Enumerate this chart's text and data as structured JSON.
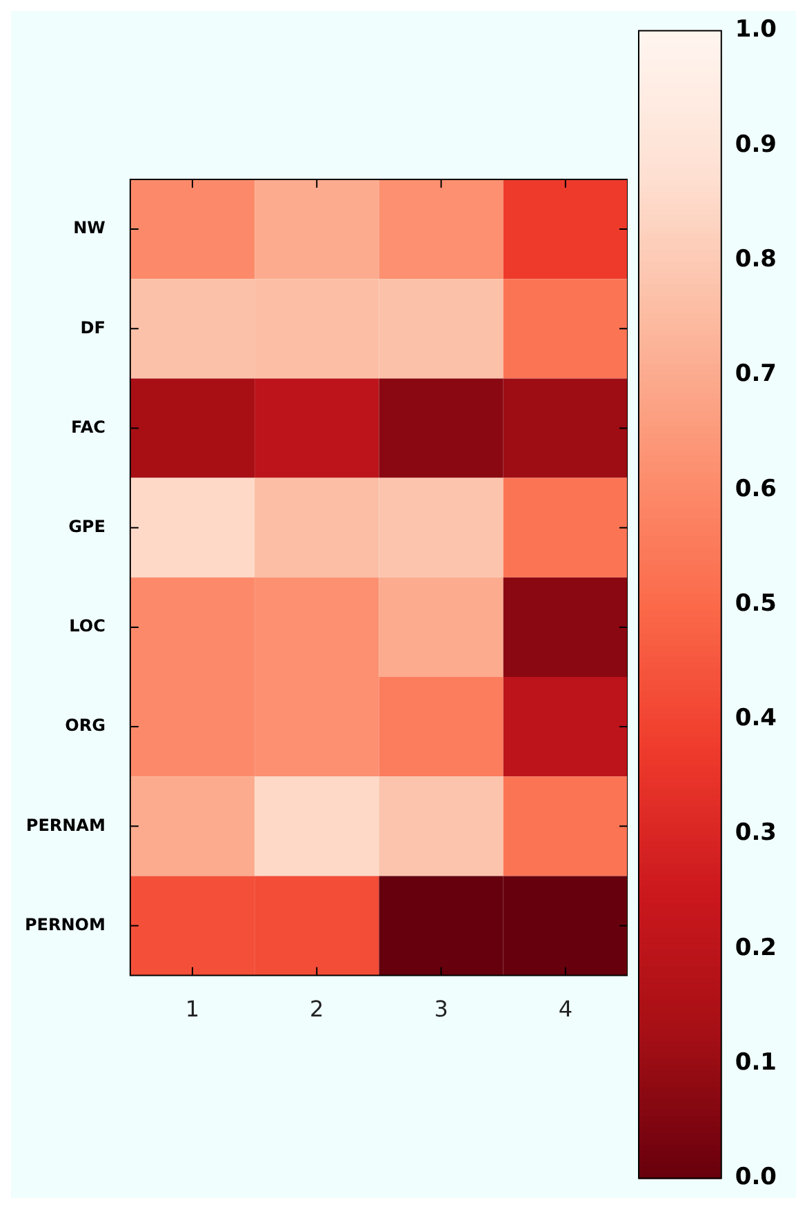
{
  "chart_data": {
    "type": "heatmap",
    "categories": [
      "1",
      "2",
      "3",
      "4"
    ],
    "y_categories": [
      "NW",
      "DF",
      "FAC",
      "GPE",
      "LOC",
      "ORG",
      "PERNAM",
      "PERNOM"
    ],
    "cells": [
      [
        0.6,
        0.7,
        0.62,
        0.37
      ],
      [
        0.77,
        0.76,
        0.77,
        0.53
      ],
      [
        0.13,
        0.2,
        0.07,
        0.11
      ],
      [
        0.85,
        0.76,
        0.78,
        0.53
      ],
      [
        0.6,
        0.62,
        0.7,
        0.07
      ],
      [
        0.6,
        0.62,
        0.56,
        0.2
      ],
      [
        0.7,
        0.85,
        0.78,
        0.53
      ],
      [
        0.43,
        0.42,
        0.0,
        0.0
      ]
    ],
    "clim": [
      0,
      1
    ],
    "cticks": [
      {
        "value": 0,
        "label": "0.0"
      },
      0.1,
      0.2,
      0.3,
      0.4,
      0.5,
      0.6,
      0.7,
      0.8,
      0.9,
      {
        "value": 1,
        "label": "1.0"
      }
    ]
  }
}
